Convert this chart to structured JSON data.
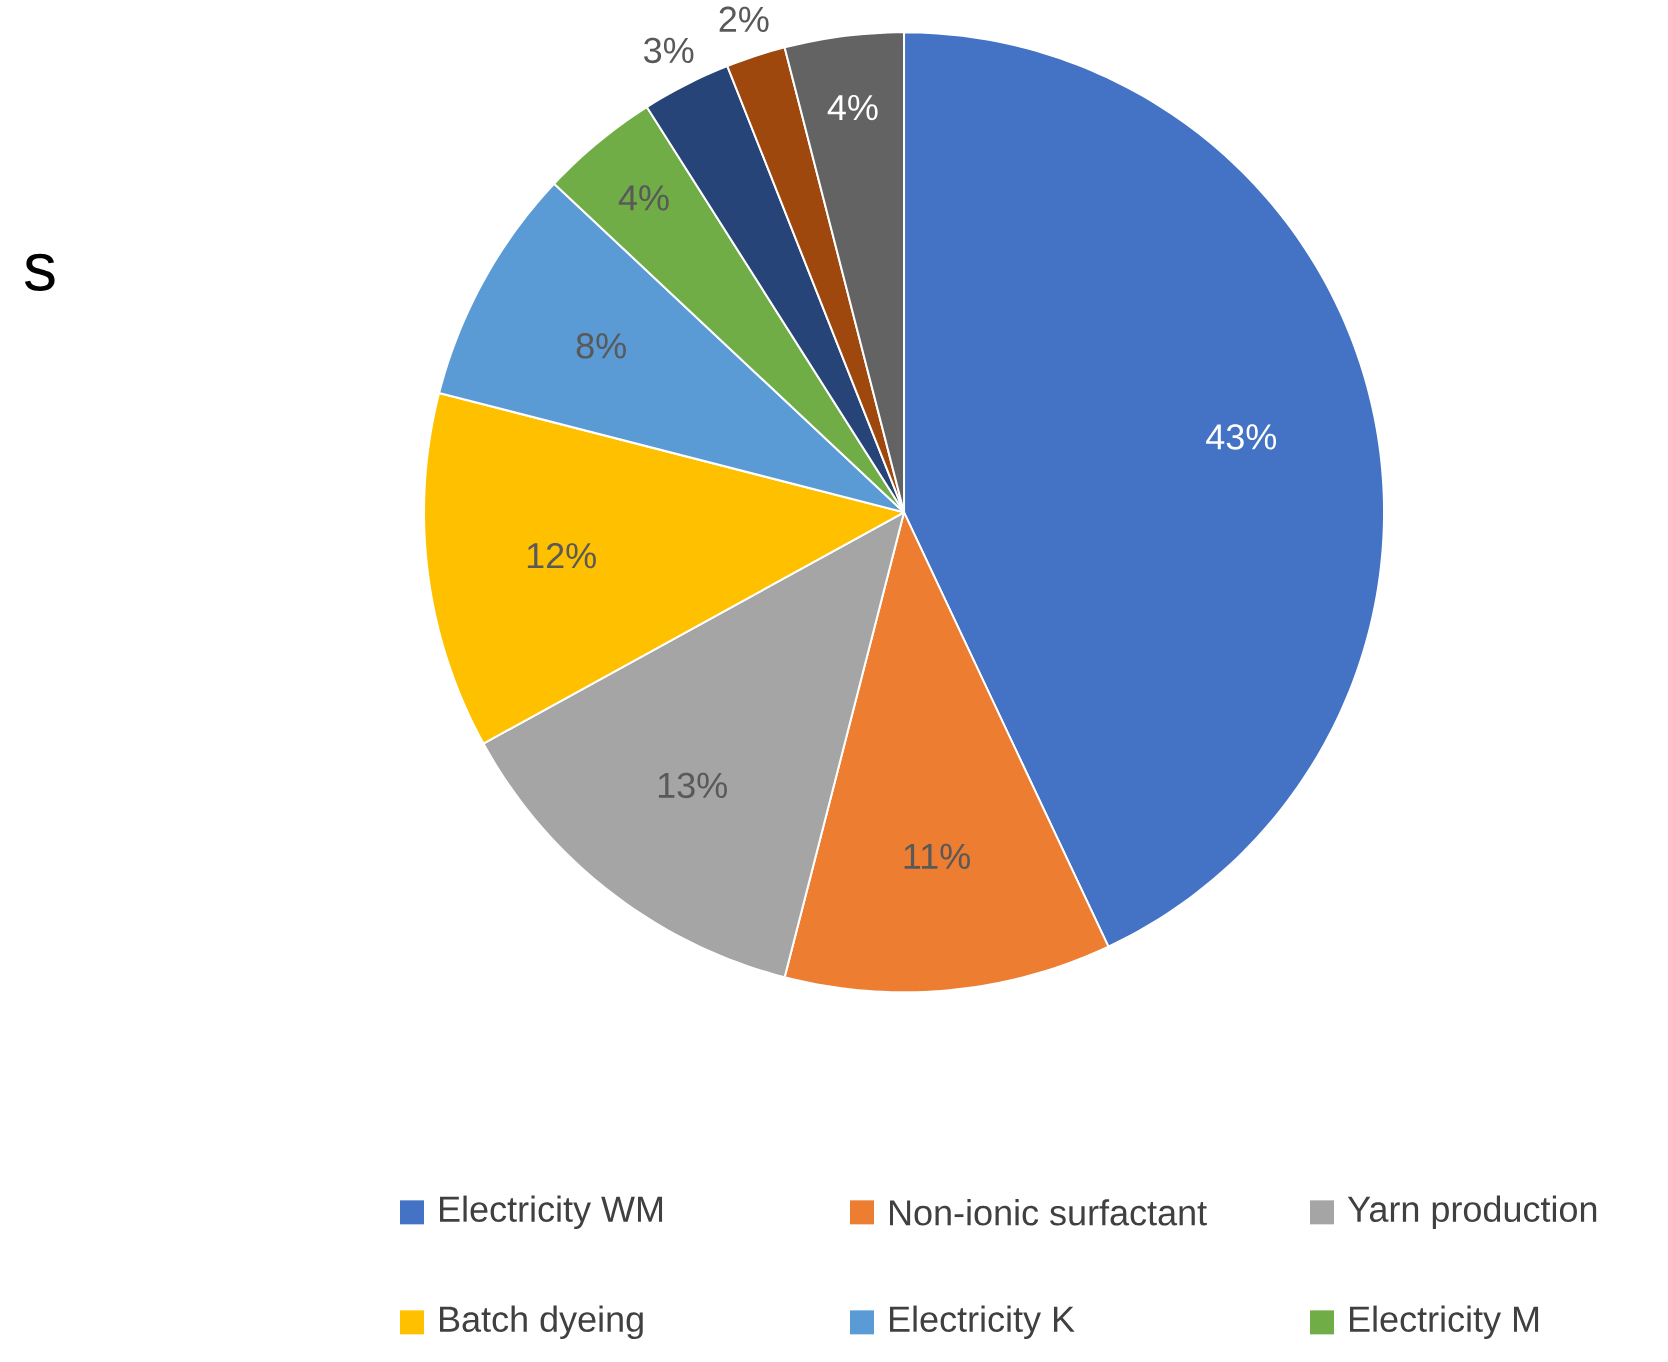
{
  "chart_data": {
    "type": "pie",
    "categories": [
      "Electricity WM",
      "Non-ionic surfactant",
      "Yarn production",
      "Batch dyeing",
      "Electricity K",
      "Electricity M",
      null,
      null,
      null
    ],
    "values": [
      43,
      11,
      13,
      12,
      8,
      4,
      3,
      2,
      4
    ],
    "value_labels": [
      "43%",
      "11%",
      "13%",
      "12%",
      "8%",
      "4%",
      "3%",
      "2%",
      "4%"
    ],
    "colors": [
      "#4472c4",
      "#ed7d31",
      "#a5a5a5",
      "#ffc000",
      "#5b9bd5",
      "#70ad47",
      "#264478",
      "#9e480e",
      "#636363"
    ],
    "legend": "bottom",
    "annotations": [
      "s"
    ]
  }
}
